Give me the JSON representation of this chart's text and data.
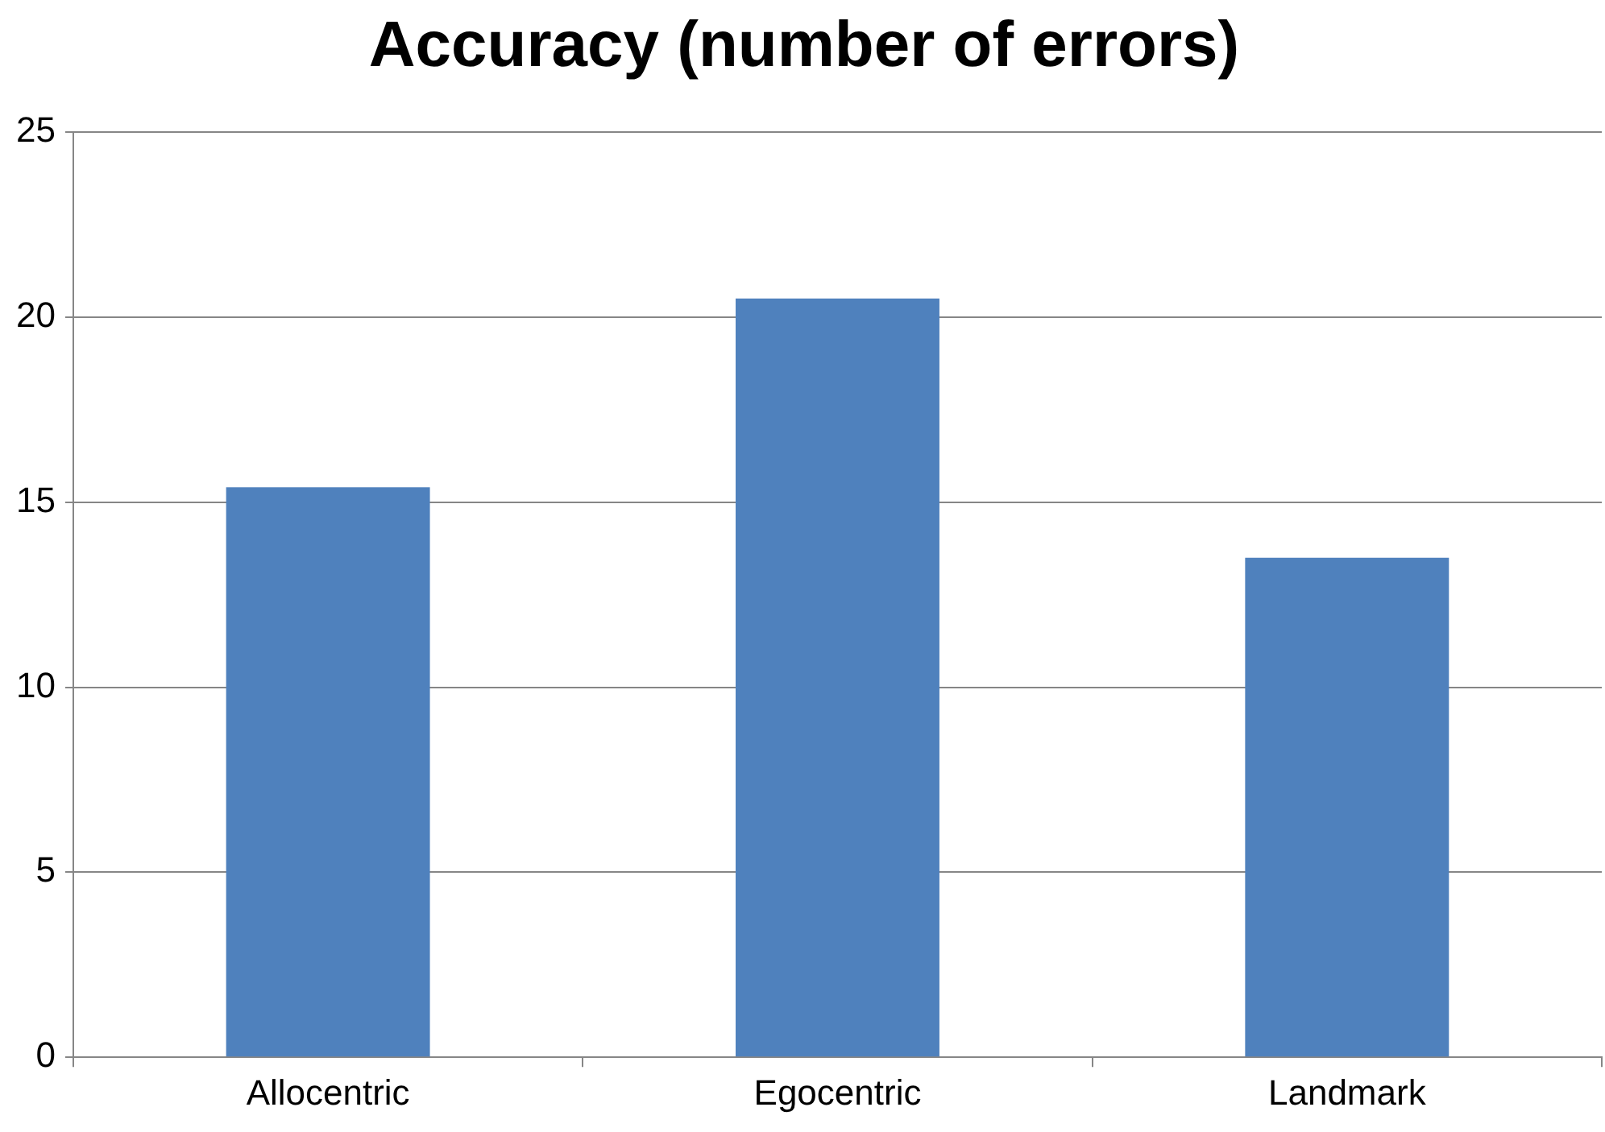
{
  "chart_data": {
    "type": "bar",
    "title": "Accuracy (number of errors)",
    "categories": [
      "Allocentric",
      "Egocentric",
      "Landmark"
    ],
    "values": [
      15.4,
      20.5,
      13.5
    ],
    "color": "#4f81bd",
    "ylim": [
      0,
      25
    ],
    "yticks": [
      0,
      5,
      10,
      15,
      20,
      25
    ],
    "grid": "y",
    "legend": false
  }
}
